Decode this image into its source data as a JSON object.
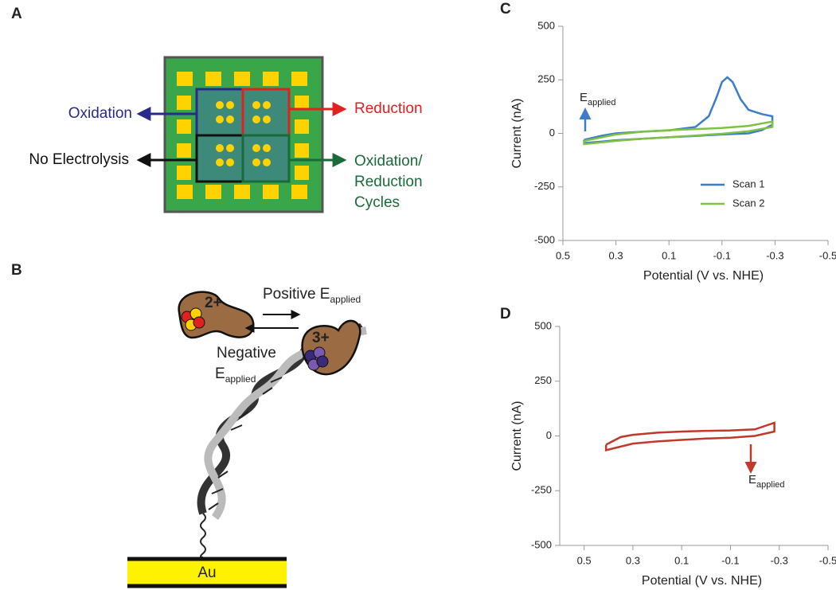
{
  "panels": {
    "a": {
      "letter": "A",
      "oxidation": "Oxidation",
      "reduction": "Reduction",
      "no_electrolysis": "No Electrolysis",
      "cycles": [
        "Oxidation/",
        "Reduction",
        "Cycles"
      ]
    },
    "b": {
      "letter": "B",
      "state_2": "2+",
      "state_3": "3+",
      "positive": "Positive E",
      "positive_sub": "applied",
      "negative": "Negative",
      "negative_e": "E",
      "negative_sub": "applied",
      "electrode": "Au"
    }
  },
  "chart_data": [
    {
      "type": "line",
      "letter": "C",
      "xlabel": "Potential (V vs. NHE)",
      "ylabel": "Current (nA)",
      "xlim": [
        0.5,
        -0.5
      ],
      "xticks": [
        0.5,
        0.3,
        0.1,
        -0.1,
        -0.3,
        -0.5
      ],
      "ylim": [
        -500,
        500
      ],
      "yticks": [
        -500,
        -250,
        0,
        250,
        500
      ],
      "legend": "lower right",
      "annotation": {
        "text": "E",
        "sub": "applied"
      },
      "series": [
        {
          "name": "Scan 1",
          "color": "#3d7cc9",
          "x": [
            0.42,
            0.35,
            0.3,
            0.2,
            0.1,
            0.0,
            -0.05,
            -0.08,
            -0.1,
            -0.12,
            -0.14,
            -0.17,
            -0.2,
            -0.25,
            -0.29,
            -0.29,
            -0.25,
            -0.2,
            -0.1,
            0.0,
            0.1,
            0.2,
            0.3,
            0.35,
            0.42,
            0.42
          ],
          "values": [
            -30,
            -10,
            0,
            8,
            14,
            30,
            80,
            170,
            240,
            262,
            240,
            160,
            110,
            90,
            80,
            40,
            15,
            0,
            -5,
            -12,
            -18,
            -25,
            -32,
            -38,
            -45,
            -30
          ]
        },
        {
          "name": "Scan 2",
          "color": "#7dc242",
          "x": [
            0.42,
            0.3,
            0.2,
            0.1,
            0.0,
            -0.1,
            -0.2,
            -0.29,
            -0.29,
            -0.2,
            -0.1,
            0.0,
            0.1,
            0.2,
            0.3,
            0.42,
            0.42
          ],
          "values": [
            -35,
            -5,
            8,
            15,
            20,
            25,
            35,
            55,
            30,
            10,
            -2,
            -10,
            -18,
            -25,
            -35,
            -50,
            -35
          ]
        }
      ]
    },
    {
      "type": "line",
      "letter": "D",
      "xlabel": "Potential (V vs. NHE)",
      "ylabel": "Current (nA)",
      "xlim": [
        0.6,
        -0.5
      ],
      "xticks": [
        0.5,
        0.3,
        0.1,
        -0.1,
        -0.3,
        -0.5
      ],
      "ylim": [
        -500,
        500
      ],
      "yticks": [
        -500,
        -250,
        0,
        250,
        500
      ],
      "annotation": {
        "text": "E",
        "sub": "applied"
      },
      "series": [
        {
          "color": "#c0392b",
          "x": [
            0.41,
            0.35,
            0.3,
            0.2,
            0.1,
            0.0,
            -0.1,
            -0.2,
            -0.28,
            -0.28,
            -0.2,
            -0.1,
            0.0,
            0.1,
            0.2,
            0.3,
            0.41,
            0.41
          ],
          "values": [
            -40,
            -5,
            5,
            15,
            20,
            23,
            25,
            30,
            60,
            20,
            0,
            -8,
            -12,
            -18,
            -25,
            -35,
            -65,
            -40
          ]
        }
      ]
    }
  ]
}
